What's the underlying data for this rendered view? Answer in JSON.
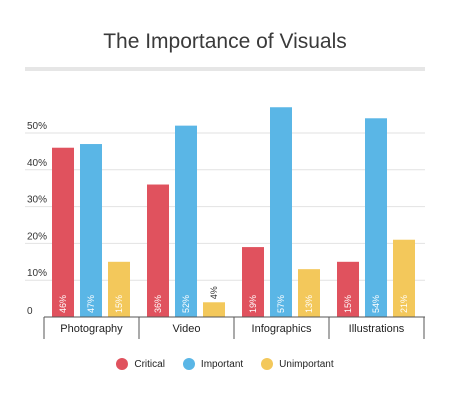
{
  "chart_data": {
    "type": "bar",
    "title": "The Importance of Visuals",
    "categories": [
      "Photography",
      "Video",
      "Infographics",
      "Illustrations"
    ],
    "series": [
      {
        "name": "Critical",
        "color": "#e0525e",
        "values": [
          46,
          36,
          19,
          15
        ],
        "labels": [
          "46%",
          "36%",
          "19%",
          "15%"
        ]
      },
      {
        "name": "Important",
        "color": "#5ab6e6",
        "values": [
          47,
          52,
          57,
          54
        ],
        "labels": [
          "47%",
          "52%",
          "57%",
          "54%"
        ]
      },
      {
        "name": "Unimportant",
        "color": "#f3c85b",
        "values": [
          15,
          4,
          13,
          21
        ],
        "labels": [
          "15%",
          "4%",
          "13%",
          "21%"
        ]
      }
    ],
    "yticks": [
      {
        "value": 0,
        "label": "0"
      },
      {
        "value": 10,
        "label": "10%"
      },
      {
        "value": 20,
        "label": "20%"
      },
      {
        "value": 30,
        "label": "30%"
      },
      {
        "value": 40,
        "label": "40%"
      },
      {
        "value": 50,
        "label": "50%"
      }
    ],
    "ylim": [
      0,
      60
    ],
    "xlabel": "",
    "ylabel": "",
    "grid": true,
    "legend_position": "bottom"
  }
}
